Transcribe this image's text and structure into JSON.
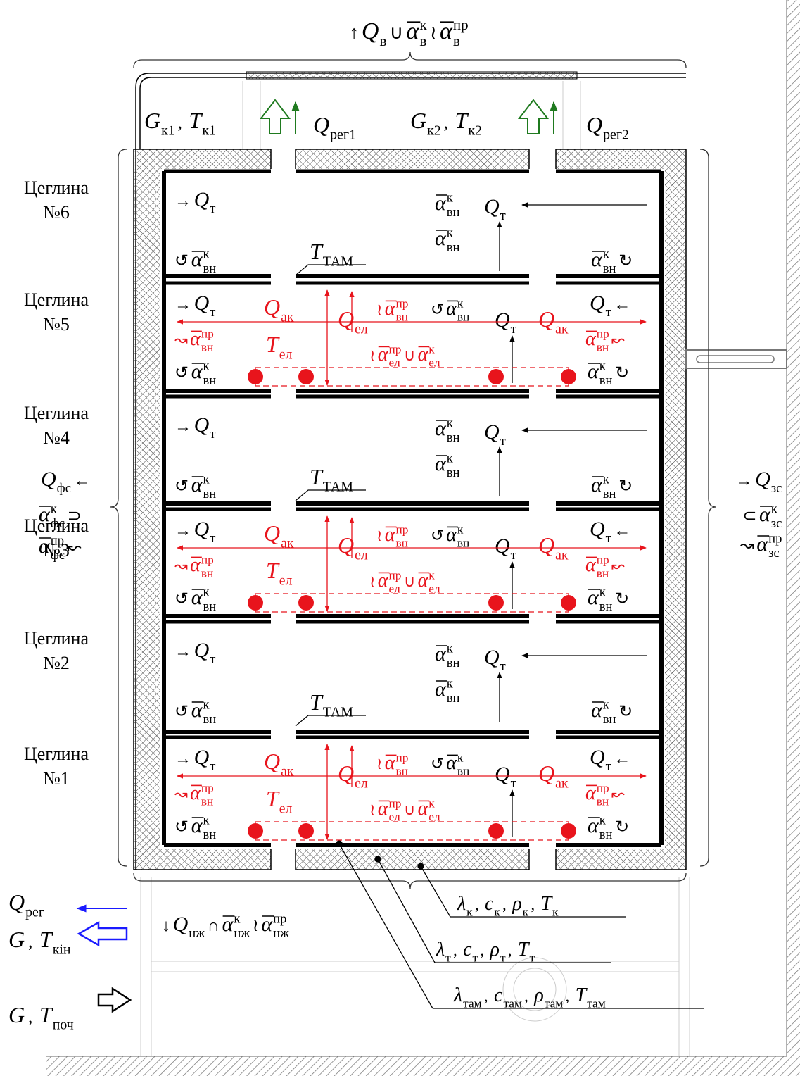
{
  "formulas": {
    "top": [
      "↑",
      {
        "s": "Q",
        "sub": "в"
      },
      "∪",
      {
        "s": "α",
        "bar": true,
        "sup": "к",
        "sub": "в"
      },
      "≀",
      {
        "s": "α",
        "bar": true,
        "sup": "пр",
        "sub": "в"
      }
    ],
    "gk1": [
      {
        "s": "G",
        "sub": "к1"
      },
      ",",
      {
        "s": "T",
        "sub": "к1"
      }
    ],
    "qreg1": [
      {
        "s": "Q",
        "sub": "рег1"
      }
    ],
    "gk2": [
      {
        "s": "G",
        "sub": "к2"
      },
      ",",
      {
        "s": "T",
        "sub": "к2"
      }
    ],
    "qreg2": [
      {
        "s": "Q",
        "sub": "рег2"
      }
    ],
    "bottom": [
      "↓",
      {
        "s": "Q",
        "sub": "нж"
      },
      "∩",
      {
        "s": "α",
        "bar": true,
        "sup": "к",
        "sub": "нж"
      },
      "≀",
      {
        "s": "α",
        "bar": true,
        "sup": "пр",
        "sub": "нж"
      }
    ]
  },
  "bricks": [
    [
      "Цеглина",
      "№6"
    ],
    [
      "Цеглина",
      "№5"
    ],
    [
      "Цеглина",
      "№4"
    ],
    [
      "Цеглина",
      "№3"
    ],
    [
      "Цеглина",
      "№2"
    ],
    [
      "Цеглина",
      "№1"
    ]
  ],
  "plain_brick": {
    "qt_left": [
      "→",
      {
        "s": "Q",
        "sub": "т"
      }
    ],
    "conv_left": [
      "↺",
      {
        "s": "α",
        "bar": true,
        "sup": "к",
        "sub": "вн"
      }
    ],
    "t_tam": [
      {
        "s": "T",
        "sub": "ТАМ"
      }
    ],
    "conv_top": [
      {
        "s": "α",
        "bar": true,
        "sup": "к",
        "sub": "вн"
      }
    ],
    "qt_center": [
      {
        "s": "Q",
        "sub": "т"
      }
    ],
    "conv_mid": [
      {
        "s": "α",
        "bar": true,
        "sup": "к",
        "sub": "вн"
      }
    ],
    "conv_right": [
      {
        "s": "α",
        "bar": true,
        "sup": "к",
        "sub": "вн"
      },
      "↻"
    ]
  },
  "heated_brick": {
    "qt_left": [
      "→",
      {
        "s": "Q",
        "sub": "т"
      }
    ],
    "q_ak": [
      {
        "s": "Q",
        "sub": "ак"
      }
    ],
    "q_el": [
      {
        "s": "Q",
        "sub": "ел"
      }
    ],
    "rad_top": [
      "≀",
      {
        "s": "α",
        "bar": true,
        "sup": "пр",
        "sub": "вн"
      }
    ],
    "conv_center": [
      "↺",
      {
        "s": "α",
        "bar": true,
        "sup": "к",
        "sub": "вн"
      }
    ],
    "qt_center": [
      {
        "s": "Q",
        "sub": "т"
      }
    ],
    "qt_right": [
      {
        "s": "Q",
        "sub": "т"
      },
      "←"
    ],
    "rad_left": [
      "↝",
      {
        "s": "α",
        "bar": true,
        "sup": "пр",
        "sub": "вн"
      }
    ],
    "t_el": [
      {
        "s": "T",
        "sub": "ел"
      }
    ],
    "el_exchange": [
      "≀",
      {
        "s": "α",
        "bar": true,
        "sup": "пр",
        "sub": "ел"
      },
      "∪",
      {
        "s": "α",
        "bar": true,
        "sup": "к",
        "sub": "ел"
      }
    ],
    "rad_right": [
      {
        "s": "α",
        "bar": true,
        "sup": "пр",
        "sub": "вн"
      },
      "↜"
    ],
    "conv_left": [
      "↺",
      {
        "s": "α",
        "bar": true,
        "sup": "к",
        "sub": "вн"
      }
    ],
    "conv_right": [
      {
        "s": "α",
        "bar": true,
        "sup": "к",
        "sub": "вн"
      },
      "↻"
    ]
  },
  "side_left": {
    "q_fs": [
      {
        "s": "Q",
        "sub": "фс"
      },
      "←"
    ],
    "conv_fs": [
      {
        "s": "α",
        "bar": true,
        "sup": "к",
        "sub": "фс"
      },
      "⊃"
    ],
    "rad_fs": [
      {
        "s": "α",
        "bar": true,
        "sup": "пр",
        "sub": "фс"
      },
      "↜"
    ]
  },
  "side_right": {
    "q_zs": [
      "→",
      {
        "s": "Q",
        "sub": "зс"
      }
    ],
    "conv_zs": [
      "⊂",
      {
        "s": "α",
        "bar": true,
        "sup": "к",
        "sub": "зс"
      }
    ],
    "rad_zs": [
      "↝",
      {
        "s": "α",
        "bar": true,
        "sup": "пр",
        "sub": "зс"
      }
    ]
  },
  "flows": {
    "q_reg": [
      {
        "s": "Q",
        "sub": "рег"
      }
    ],
    "g_end": [
      {
        "s": "G"
      },
      ",",
      {
        "s": "T",
        "sub": "кін"
      }
    ],
    "g_start": [
      {
        "s": "G"
      },
      ",",
      {
        "s": "T",
        "sub": "поч"
      }
    ]
  },
  "materials": {
    "casing": [
      {
        "s": "λ",
        "sub": "к"
      },
      ",",
      {
        "s": "c",
        "sub": "к"
      },
      ",",
      {
        "s": "ρ",
        "sub": "к"
      },
      ",",
      {
        "s": "T",
        "sub": "к"
      }
    ],
    "brick": [
      {
        "s": "λ",
        "sub": "т"
      },
      ",",
      {
        "s": "c",
        "sub": "т"
      },
      ",",
      {
        "s": "ρ",
        "sub": "т"
      },
      ",",
      {
        "s": "T",
        "sub": "т"
      }
    ],
    "tam": [
      {
        "s": "λ",
        "sub": "там"
      },
      ",",
      {
        "s": "c",
        "sub": "там"
      },
      ",",
      {
        "s": "ρ",
        "sub": "там"
      },
      ",",
      {
        "s": "T",
        "sub": "там"
      }
    ]
  }
}
